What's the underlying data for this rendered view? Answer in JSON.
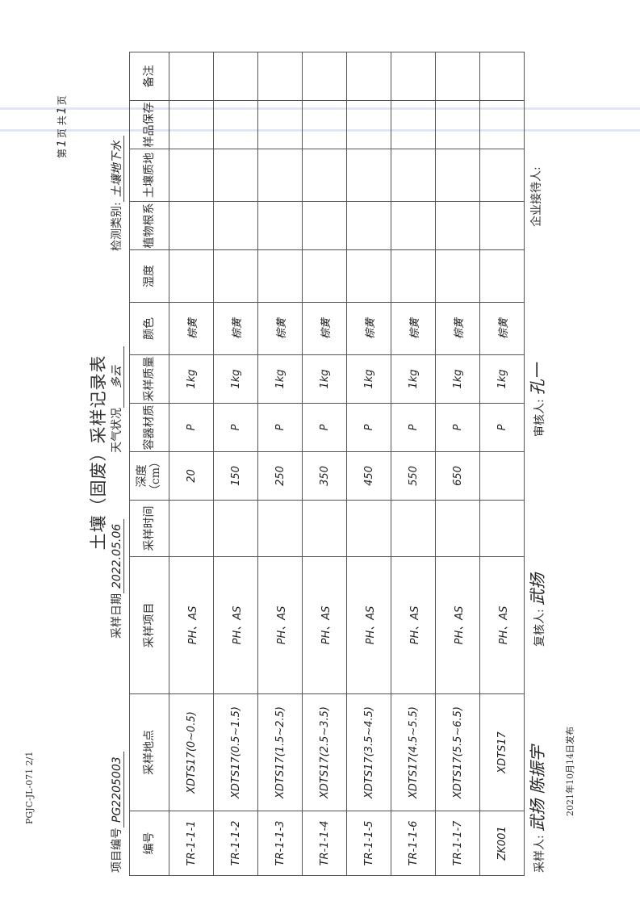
{
  "form_code": "PGJC-JL-071  2/1",
  "pager": {
    "page_prefix": "第",
    "page_no": "1",
    "page_mid": "页  共",
    "total": "1",
    "page_suffix": "页"
  },
  "title": "土壤（固废）采样记录表",
  "meta": {
    "project_label": "项目编号",
    "project_value": "PG2205003",
    "date_label": "采样日期",
    "date_value": "2022.05.06",
    "weather_label": "天气状况",
    "weather_value": "多云",
    "category_label": "检测类别:",
    "category_value": "土壤地下水"
  },
  "table": {
    "headers": [
      "编号",
      "采样地点",
      "采样项目",
      "采样时间",
      "深度（cm）",
      "容器材质",
      "采样质量",
      "颜色",
      "湿度",
      "植物根系",
      "土壤质地",
      "样品保存",
      "备注"
    ],
    "rows": [
      [
        "TR-1-1-1",
        "XDTS17(0~0.5)",
        "PH、AS",
        "",
        "20",
        "P",
        "1kg",
        "棕黄",
        "",
        "",
        "",
        "",
        ""
      ],
      [
        "TR-1-1-2",
        "XDTS17(0.5~1.5)",
        "PH、AS",
        "",
        "150",
        "P",
        "1kg",
        "棕黄",
        "",
        "",
        "",
        "",
        ""
      ],
      [
        "TR-1-1-3",
        "XDTS17(1.5~2.5)",
        "PH、AS",
        "",
        "250",
        "P",
        "1kg",
        "棕黄",
        "",
        "",
        "",
        "",
        ""
      ],
      [
        "TR-1-1-4",
        "XDTS17(2.5~3.5)",
        "PH、AS",
        "",
        "350",
        "P",
        "1kg",
        "棕黄",
        "",
        "",
        "",
        "",
        ""
      ],
      [
        "TR-1-1-5",
        "XDTS17(3.5~4.5)",
        "PH、AS",
        "",
        "450",
        "P",
        "1kg",
        "棕黄",
        "",
        "",
        "",
        "",
        ""
      ],
      [
        "TR-1-1-6",
        "XDTS17(4.5~5.5)",
        "PH、AS",
        "",
        "550",
        "P",
        "1kg",
        "棕黄",
        "",
        "",
        "",
        "",
        ""
      ],
      [
        "TR-1-1-7",
        "XDTS17(5.5~6.5)",
        "PH、AS",
        "",
        "650",
        "P",
        "1kg",
        "棕黄",
        "",
        "",
        "",
        "",
        ""
      ],
      [
        "ZK001",
        "XDTS17",
        "PH、AS",
        "",
        "",
        "P",
        "1kg",
        "棕黄",
        "",
        "",
        "",
        "",
        ""
      ]
    ]
  },
  "footer": {
    "sampler_label": "采样人:",
    "sampler_sig": "武扬 陈振宇",
    "reviewer_label": "复核人:",
    "reviewer_sig": "武扬",
    "auditor_label": "审核人:",
    "auditor_sig": "孔一",
    "host_label": "企业接待人:",
    "host_sig": ""
  },
  "issued": "2021年10月14日发布"
}
